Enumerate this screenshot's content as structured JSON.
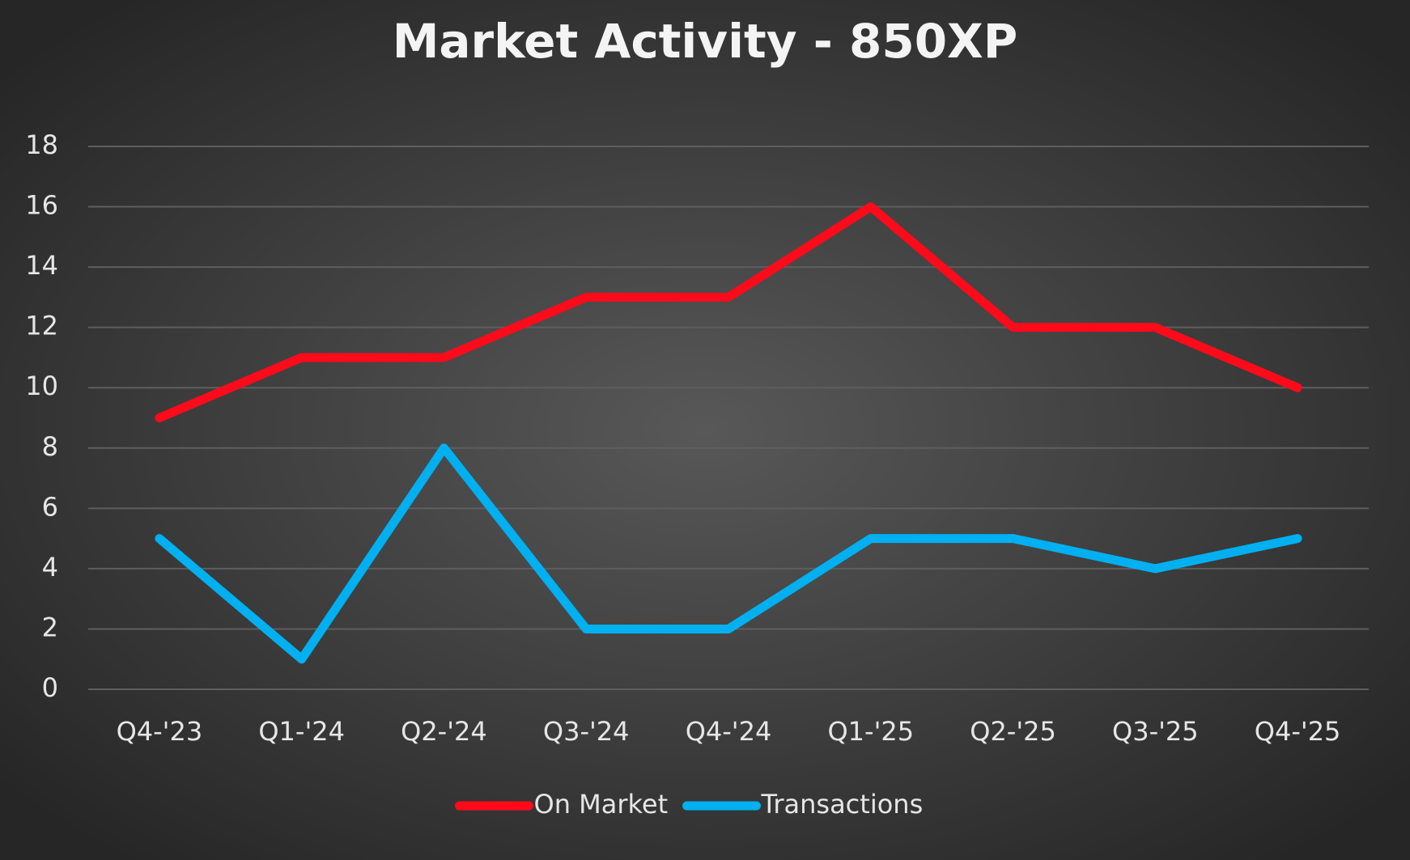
{
  "chart_data": {
    "type": "line",
    "title": "Market Activity - 850XP",
    "categories": [
      "Q4-'23",
      "Q1-'24",
      "Q2-'24",
      "Q3-'24",
      "Q4-'24",
      "Q1-'25",
      "Q2-'25",
      "Q3-'25",
      "Q4-'25"
    ],
    "series": [
      {
        "name": "On Market",
        "color": "#ff0a1a",
        "values": [
          9,
          11,
          11,
          13,
          13,
          16,
          12,
          12,
          10
        ]
      },
      {
        "name": "Transactions",
        "color": "#00b0f0",
        "values": [
          5,
          1,
          8,
          2,
          2,
          5,
          5,
          4,
          5
        ]
      }
    ],
    "ylim": [
      0,
      18
    ],
    "yticks": [
      0,
      2,
      4,
      6,
      8,
      10,
      12,
      14,
      16,
      18
    ],
    "grid": true,
    "legend": "bottom"
  }
}
